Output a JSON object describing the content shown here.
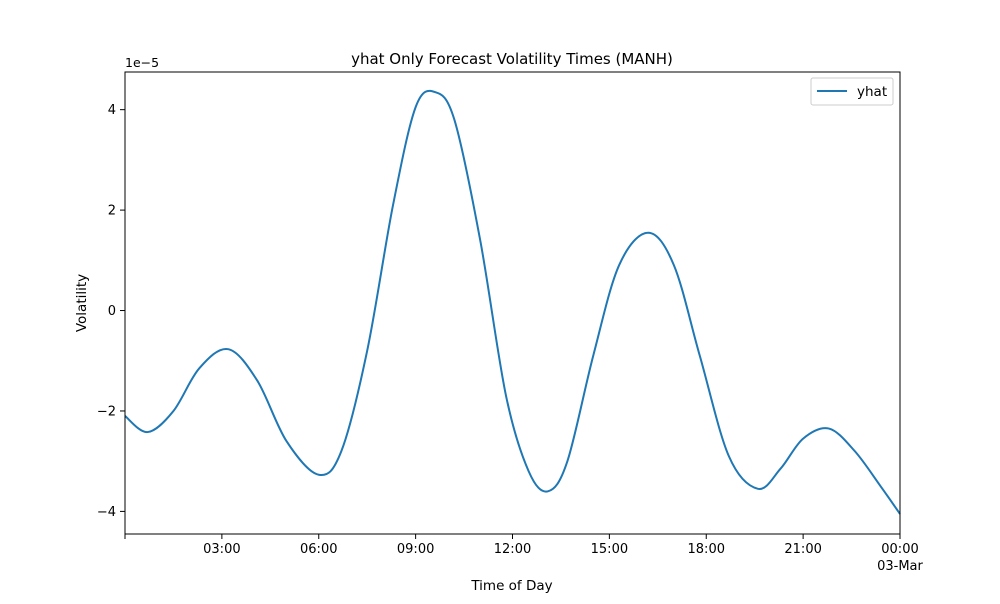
{
  "chart_data": {
    "type": "line",
    "title": "yhat Only Forecast Volatility Times (MANH)",
    "xlabel": "Time of Day",
    "ylabel": "Volatility",
    "y_scale_label": "1e−5",
    "x_unit": "hours",
    "xlim": [
      0,
      24
    ],
    "ylim": [
      -4.45,
      4.75
    ],
    "grid": false,
    "legend_position": "upper-right",
    "x_ticks": [
      {
        "value": 0,
        "label": ""
      },
      {
        "value": 3,
        "label": "03:00"
      },
      {
        "value": 6,
        "label": "06:00"
      },
      {
        "value": 9,
        "label": "09:00"
      },
      {
        "value": 12,
        "label": "12:00"
      },
      {
        "value": 15,
        "label": "15:00"
      },
      {
        "value": 18,
        "label": "18:00"
      },
      {
        "value": 21,
        "label": "21:00"
      },
      {
        "value": 24,
        "label": "00:00",
        "label2": "03-Mar"
      }
    ],
    "y_ticks": [
      {
        "value": -4,
        "label": "−4"
      },
      {
        "value": -2,
        "label": "−2"
      },
      {
        "value": 0,
        "label": "0"
      },
      {
        "value": 2,
        "label": "2"
      },
      {
        "value": 4,
        "label": "4"
      }
    ],
    "series": [
      {
        "name": "yhat",
        "color": "#1f77b4",
        "x": [
          0,
          0.7,
          1.5,
          2.3,
          3.2,
          4.1,
          5.0,
          6.0,
          6.7,
          7.5,
          8.3,
          9.0,
          9.6,
          10.2,
          11.0,
          11.8,
          12.5,
          13.1,
          13.7,
          14.5,
          15.3,
          16.2,
          17.0,
          17.8,
          18.7,
          19.6,
          20.3,
          21.0,
          21.8,
          22.6,
          23.4,
          24.0
        ],
        "y": [
          -2.1,
          -2.42,
          -2.0,
          -1.15,
          -0.77,
          -1.4,
          -2.6,
          -3.27,
          -2.8,
          -0.8,
          2.1,
          4.05,
          4.35,
          3.8,
          1.4,
          -1.7,
          -3.2,
          -3.6,
          -3.0,
          -0.9,
          0.9,
          1.55,
          0.9,
          -0.9,
          -2.9,
          -3.55,
          -3.15,
          -2.55,
          -2.35,
          -2.8,
          -3.5,
          -4.05
        ]
      }
    ]
  }
}
